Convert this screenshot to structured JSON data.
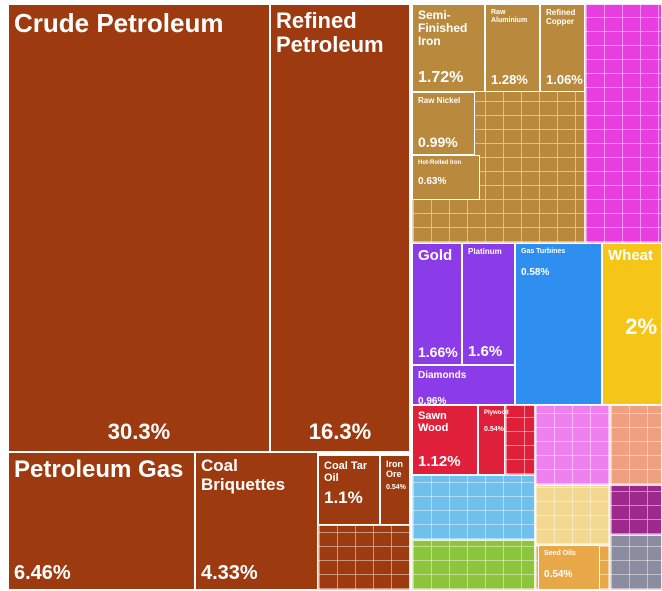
{
  "chart_data": {
    "type": "treemap",
    "categories": [
      "Crude Petroleum",
      "Refined Petroleum",
      "Petroleum Gas",
      "Coal Briquettes",
      "Coal Tar Oil",
      "Iron Ore",
      "Semi-Finished Iron",
      "Raw Aluminium",
      "Refined Copper",
      "Raw Nickel",
      "Hot-Rolled Iron",
      "Gold",
      "Platinum",
      "Diamonds",
      "Gas Turbines",
      "Wheat",
      "Sawn Wood",
      "Plywood",
      "Seed Oils"
    ],
    "values": [
      30.3,
      16.3,
      6.46,
      4.33,
      1.1,
      0.54,
      1.72,
      1.28,
      1.06,
      0.99,
      0.63,
      1.66,
      1.6,
      0.96,
      0.58,
      2,
      1.12,
      0.54,
      0.54
    ],
    "value_labels": [
      "30.3%",
      "16.3%",
      "6.46%",
      "4.33%",
      "1.1%",
      "0.54%",
      "1.72%",
      "1.28%",
      "1.06%",
      "0.99%",
      "0.63%",
      "1.66%",
      "1.6%",
      "0.96%",
      "0.58%",
      "2%",
      "1.12%",
      "0.54%",
      "0.54%"
    ],
    "colors": [
      "#9e3a10",
      "#9e3a10",
      "#9e3a10",
      "#9e3a10",
      "#9e3a10",
      "#9e3a10",
      "#b98a3e",
      "#b98a3e",
      "#b98a3e",
      "#b98a3e",
      "#b98a3e",
      "#8c3be8",
      "#8c3be8",
      "#8c3be8",
      "#2f8ff0",
      "#f5c518",
      "#e0203a",
      "#e0203a",
      "#e8a848"
    ]
  }
}
